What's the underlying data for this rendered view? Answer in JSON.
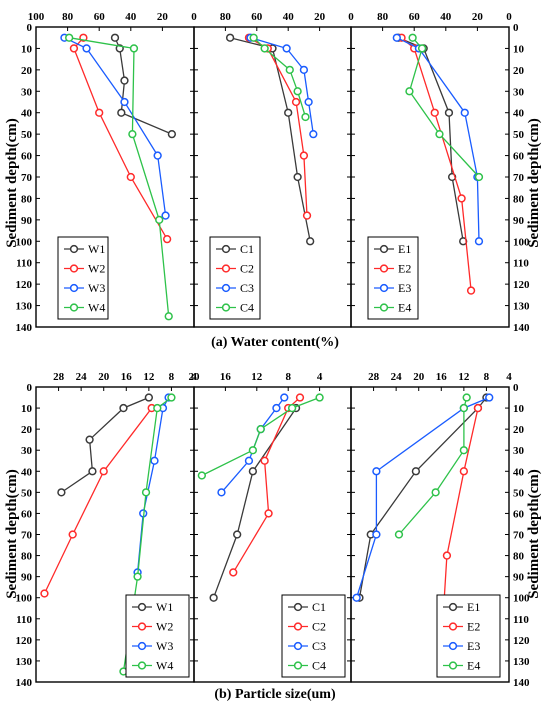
{
  "figure": {
    "caption_a": "(a) Water content(%)",
    "caption_b": "(b) Particle size(um)",
    "ylabel_left": "Sediment depth(cm)",
    "ylabel_right": "Sediment depth(cm)"
  },
  "colors": {
    "series1": "#3a3a3a",
    "series2": "#ff2a2a",
    "series3": "#1a5cff",
    "series4": "#2ec24a"
  },
  "chart_data": [
    {
      "type": "line",
      "title": "(a) Water content(%)",
      "xlabel": "",
      "ylabel": "Sediment depth(cm)",
      "xlim": [
        100,
        0
      ],
      "ylim": [
        0,
        140
      ],
      "x_ticks": [
        100,
        80,
        60,
        40,
        20,
        0
      ],
      "y_ticks": [
        0,
        10,
        20,
        30,
        40,
        50,
        60,
        70,
        80,
        90,
        100,
        110,
        120,
        130,
        140
      ],
      "legend_position": "bottom-left",
      "series": [
        {
          "name": "W1",
          "points": [
            [
              50,
              5
            ],
            [
              47,
              10
            ],
            [
              44,
              25
            ],
            [
              46,
              40
            ],
            [
              14,
              50
            ]
          ]
        },
        {
          "name": "W2",
          "points": [
            [
              70,
              5
            ],
            [
              76,
              10
            ],
            [
              60,
              40
            ],
            [
              40,
              70
            ],
            [
              17,
              99
            ]
          ]
        },
        {
          "name": "W3",
          "points": [
            [
              82,
              5
            ],
            [
              68,
              10
            ],
            [
              44,
              35
            ],
            [
              23,
              60
            ],
            [
              18,
              88
            ]
          ]
        },
        {
          "name": "W4",
          "points": [
            [
              79,
              5
            ],
            [
              38,
              10
            ],
            [
              39,
              50
            ],
            [
              22,
              90
            ],
            [
              16,
              135
            ]
          ]
        }
      ]
    },
    {
      "type": "line",
      "xlabel": "",
      "ylabel": "",
      "xlim": [
        100,
        0
      ],
      "ylim": [
        0,
        140
      ],
      "x_ticks": [
        100,
        80,
        60,
        40,
        20,
        0
      ],
      "y_ticks": [
        0,
        10,
        20,
        30,
        40,
        50,
        60,
        70,
        80,
        90,
        100,
        110,
        120,
        130,
        140
      ],
      "legend_position": "bottom-left",
      "series": [
        {
          "name": "C1",
          "points": [
            [
              77,
              5
            ],
            [
              50,
              10
            ],
            [
              40,
              40
            ],
            [
              34,
              70
            ],
            [
              26,
              100
            ]
          ]
        },
        {
          "name": "C2",
          "points": [
            [
              65,
              5
            ],
            [
              53,
              10
            ],
            [
              35,
              35
            ],
            [
              30,
              60
            ],
            [
              28,
              88
            ]
          ]
        },
        {
          "name": "C3",
          "points": [
            [
              64,
              5
            ],
            [
              41,
              10
            ],
            [
              30,
              20
            ],
            [
              27,
              35
            ],
            [
              24,
              50
            ]
          ]
        },
        {
          "name": "C4",
          "points": [
            [
              62,
              5
            ],
            [
              55,
              10
            ],
            [
              39,
              20
            ],
            [
              34,
              30
            ],
            [
              29,
              42
            ]
          ]
        }
      ]
    },
    {
      "type": "line",
      "xlabel": "",
      "ylabel": "Sediment depth(cm)",
      "xlim": [
        100,
        0
      ],
      "ylim": [
        0,
        140
      ],
      "x_ticks": [
        100,
        80,
        60,
        40,
        20,
        0
      ],
      "y_ticks": [
        0,
        10,
        20,
        30,
        40,
        50,
        60,
        70,
        80,
        90,
        100,
        110,
        120,
        130,
        140
      ],
      "legend_position": "bottom-left",
      "series": [
        {
          "name": "E1",
          "points": [
            [
              70,
              5
            ],
            [
              54,
              10
            ],
            [
              38,
              40
            ],
            [
              36,
              70
            ],
            [
              29,
              100
            ]
          ]
        },
        {
          "name": "E2",
          "points": [
            [
              68,
              5
            ],
            [
              60,
              10
            ],
            [
              47,
              40
            ],
            [
              30,
              80
            ],
            [
              24,
              123
            ]
          ]
        },
        {
          "name": "E3",
          "points": [
            [
              71,
              5
            ],
            [
              57,
              10
            ],
            [
              28,
              40
            ],
            [
              20,
              70
            ],
            [
              19,
              100
            ]
          ]
        },
        {
          "name": "E4",
          "points": [
            [
              61,
              5
            ],
            [
              55,
              10
            ],
            [
              63,
              30
            ],
            [
              44,
              50
            ],
            [
              19,
              70
            ]
          ]
        }
      ]
    },
    {
      "type": "line",
      "title": "(b) Particle size(um)",
      "xlabel": "",
      "ylabel": "Sediment depth(cm)",
      "xlim": [
        32,
        4
      ],
      "ylim": [
        0,
        140
      ],
      "x_ticks": [
        28,
        24,
        20,
        16,
        12,
        8,
        4
      ],
      "y_ticks": [
        0,
        10,
        20,
        30,
        40,
        50,
        60,
        70,
        80,
        90,
        100,
        110,
        120,
        130,
        140
      ],
      "legend_position": "bottom-right",
      "series": [
        {
          "name": "W1",
          "points": [
            [
              12,
              5
            ],
            [
              16.5,
              10
            ],
            [
              22.5,
              25
            ],
            [
              22,
              40
            ],
            [
              27.5,
              50
            ]
          ]
        },
        {
          "name": "W2",
          "points": [
            [
              11.5,
              10
            ],
            [
              20,
              40
            ],
            [
              25.5,
              70
            ],
            [
              30.5,
              98
            ]
          ]
        },
        {
          "name": "W3",
          "points": [
            [
              8.5,
              5
            ],
            [
              9.5,
              10
            ],
            [
              11,
              35
            ],
            [
              13,
              60
            ],
            [
              14,
              88
            ]
          ]
        },
        {
          "name": "W4",
          "points": [
            [
              8,
              5
            ],
            [
              10.5,
              10
            ],
            [
              12.5,
              50
            ],
            [
              14,
              90
            ],
            [
              16.5,
              135
            ]
          ]
        }
      ]
    },
    {
      "type": "line",
      "xlabel": "",
      "ylabel": "",
      "xlim": [
        20,
        0
      ],
      "ylim": [
        0,
        140
      ],
      "x_ticks": [
        20,
        16,
        12,
        8,
        4
      ],
      "y_ticks": [
        0,
        10,
        20,
        30,
        40,
        50,
        60,
        70,
        80,
        90,
        100,
        110,
        120,
        130,
        140
      ],
      "legend_position": "bottom-right",
      "series": [
        {
          "name": "C1",
          "points": [
            [
              7,
              10
            ],
            [
              12.5,
              40
            ],
            [
              14.5,
              70
            ],
            [
              17.5,
              100
            ]
          ]
        },
        {
          "name": "C2",
          "points": [
            [
              6.5,
              5
            ],
            [
              8,
              10
            ],
            [
              11,
              35
            ],
            [
              10.5,
              60
            ],
            [
              15,
              88
            ]
          ]
        },
        {
          "name": "C3",
          "points": [
            [
              8.5,
              5
            ],
            [
              9.5,
              10
            ],
            [
              11.5,
              20
            ],
            [
              13,
              35
            ],
            [
              16.5,
              50
            ]
          ]
        },
        {
          "name": "C4",
          "points": [
            [
              4,
              5
            ],
            [
              7.5,
              10
            ],
            [
              11.5,
              20
            ],
            [
              12.5,
              30
            ],
            [
              19,
              42
            ]
          ]
        }
      ]
    },
    {
      "type": "line",
      "xlabel": "",
      "ylabel": "Sediment depth(cm)",
      "xlim": [
        32,
        4
      ],
      "ylim": [
        0,
        140
      ],
      "x_ticks": [
        28,
        24,
        20,
        16,
        12,
        8,
        4
      ],
      "y_ticks": [
        0,
        10,
        20,
        30,
        40,
        50,
        60,
        70,
        80,
        90,
        100,
        110,
        120,
        130,
        140
      ],
      "legend_position": "bottom-right",
      "series": [
        {
          "name": "E1",
          "points": [
            [
              8,
              5
            ],
            [
              9.5,
              10
            ],
            [
              20.5,
              40
            ],
            [
              28.5,
              70
            ],
            [
              30.5,
              100
            ]
          ]
        },
        {
          "name": "E2",
          "points": [
            [
              9.5,
              10
            ],
            [
              12,
              40
            ],
            [
              15,
              80
            ],
            [
              16,
              123
            ]
          ]
        },
        {
          "name": "E3",
          "points": [
            [
              7.5,
              5
            ],
            [
              12,
              10
            ],
            [
              27.5,
              40
            ],
            [
              27.5,
              70
            ],
            [
              31,
              100
            ]
          ]
        },
        {
          "name": "E4",
          "points": [
            [
              11.5,
              5
            ],
            [
              12,
              10
            ],
            [
              12,
              30
            ],
            [
              17,
              50
            ],
            [
              23.5,
              70
            ]
          ]
        }
      ]
    }
  ]
}
